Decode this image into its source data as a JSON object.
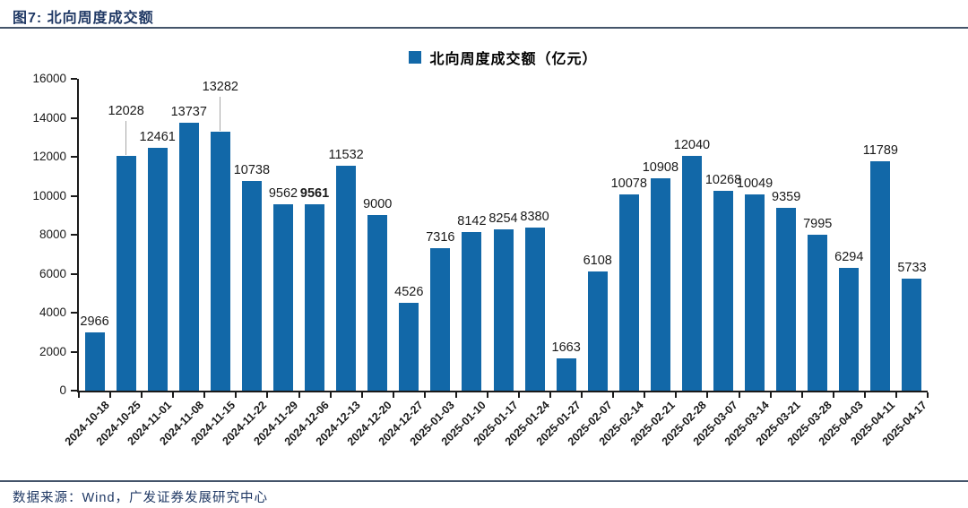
{
  "figure": {
    "title": "图7: 北向周度成交额",
    "source": "数据来源：Wind，广发证券发展研究中心"
  },
  "chart_data": {
    "type": "bar",
    "title": "",
    "legend": "北向周度成交额（亿元）",
    "legend_position": "top-center",
    "grid": false,
    "ylabel": "",
    "xlabel": "",
    "ylim": [
      0,
      16000
    ],
    "yticks": [
      0,
      2000,
      4000,
      6000,
      8000,
      10000,
      12000,
      14000,
      16000
    ],
    "bar_color": "#1268A8",
    "axis_color": "#1a1a1a",
    "leader_line_color": "#A6A6A6",
    "categories": [
      "2024-10-18",
      "2024-10-25",
      "2024-11-01",
      "2024-11-08",
      "2024-11-15",
      "2024-11-22",
      "2024-11-29",
      "2024-12-06",
      "2024-12-13",
      "2024-12-20",
      "2024-12-27",
      "2025-01-03",
      "2025-01-10",
      "2025-01-17",
      "2025-01-24",
      "2025-01-27",
      "2025-02-07",
      "2025-02-14",
      "2025-02-21",
      "2025-02-28",
      "2025-03-07",
      "2025-03-14",
      "2025-03-21",
      "2025-03-28",
      "2025-04-03",
      "2025-04-11",
      "2025-04-17"
    ],
    "values": [
      2966,
      12028,
      12461,
      13737,
      13282,
      10738,
      9562,
      9561,
      11532,
      9000,
      4526,
      7316,
      8142,
      8254,
      8380,
      1663,
      6108,
      10078,
      10908,
      12040,
      10268,
      10049,
      9359,
      7995,
      6294,
      11789,
      5733
    ],
    "callout_categories": [
      "2024-10-25",
      "2024-11-15"
    ],
    "bold_value_categories": [
      "2024-12-06"
    ]
  }
}
